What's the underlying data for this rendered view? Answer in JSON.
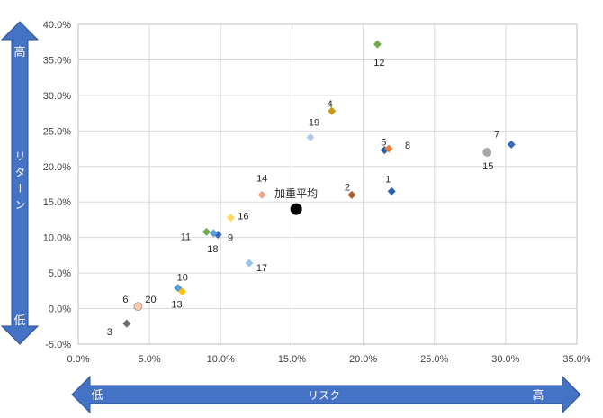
{
  "chart_data": {
    "type": "scatter",
    "title": "",
    "xlabel": "リスク",
    "ylabel": "リターン",
    "xlim": [
      0.0,
      35.0
    ],
    "ylim": [
      -5.0,
      40.0
    ],
    "x_ticks": [
      0,
      5,
      10,
      15,
      20,
      25,
      30,
      35
    ],
    "y_ticks": [
      -5,
      0,
      5,
      10,
      15,
      20,
      25,
      30,
      35,
      40
    ],
    "x_tick_labels": [
      "0.0%",
      "5.0%",
      "10.0%",
      "15.0%",
      "20.0%",
      "25.0%",
      "30.0%",
      "35.0%"
    ],
    "y_tick_labels": [
      "-5.0%",
      "0.0%",
      "5.0%",
      "10.0%",
      "15.0%",
      "20.0%",
      "25.0%",
      "30.0%",
      "35.0%",
      "40.0%"
    ],
    "grid": true,
    "x_arrow": {
      "low_label": "低",
      "high_label": "高",
      "color": "#4472c4"
    },
    "y_arrow": {
      "low_label": "低",
      "high_label": "高",
      "color": "#4472c4"
    },
    "points": [
      {
        "label": "1",
        "x": 22.0,
        "y": 16.5,
        "color": "#2e5fa8",
        "marker": "diamond"
      },
      {
        "label": "2",
        "x": 19.2,
        "y": 16.0,
        "color": "#b05a2a",
        "marker": "diamond"
      },
      {
        "label": "3",
        "x": 3.4,
        "y": -2.1,
        "color": "#6d6d6d",
        "marker": "diamond"
      },
      {
        "label": "4",
        "x": 17.8,
        "y": 27.8,
        "color": "#c89a06",
        "marker": "diamond"
      },
      {
        "label": "5",
        "x": 21.5,
        "y": 22.3,
        "color": "#2e5fa8",
        "marker": "diamond"
      },
      {
        "label": "6",
        "x": 4.2,
        "y": 0.3,
        "color": "#f4b183",
        "marker": "circle"
      },
      {
        "label": "7",
        "x": 30.4,
        "y": 23.1,
        "color": "#3a67bd",
        "marker": "diamond"
      },
      {
        "label": "8",
        "x": 21.8,
        "y": 22.5,
        "color": "#ed7d31",
        "marker": "diamond"
      },
      {
        "label": "9",
        "x": 9.8,
        "y": 10.4,
        "color": "#3a67bd",
        "marker": "diamond"
      },
      {
        "label": "10",
        "x": 7.0,
        "y": 2.9,
        "color": "#5b9bd5",
        "marker": "diamond"
      },
      {
        "label": "11",
        "x": 9.0,
        "y": 10.8,
        "color": "#70ad47",
        "marker": "diamond"
      },
      {
        "label": "12",
        "x": 21.0,
        "y": 37.2,
        "color": "#70ad47",
        "marker": "diamond"
      },
      {
        "label": "13",
        "x": 7.3,
        "y": 2.4,
        "color": "#ffc000",
        "marker": "diamond"
      },
      {
        "label": "14",
        "x": 12.9,
        "y": 16.0,
        "color": "#f4a582",
        "marker": "diamond"
      },
      {
        "label": "15",
        "x": 28.7,
        "y": 22.0,
        "color": "#a6a6a6",
        "marker": "circle"
      },
      {
        "label": "16",
        "x": 10.7,
        "y": 12.8,
        "color": "#ffd966",
        "marker": "diamond"
      },
      {
        "label": "17",
        "x": 12.0,
        "y": 6.4,
        "color": "#9dc3e6",
        "marker": "diamond"
      },
      {
        "label": "18",
        "x": 9.5,
        "y": 10.6,
        "color": "#5b9bd5",
        "marker": "diamond"
      },
      {
        "label": "19",
        "x": 16.3,
        "y": 24.1,
        "color": "#b4c7e7",
        "marker": "diamond"
      },
      {
        "label": "20",
        "x": 4.2,
        "y": 0.3,
        "color": "#f8cbad",
        "marker": "circle"
      }
    ],
    "highlight": {
      "label": "加重平均",
      "x": 15.3,
      "y": 14.0,
      "color": "#000000",
      "marker": "circle"
    }
  }
}
